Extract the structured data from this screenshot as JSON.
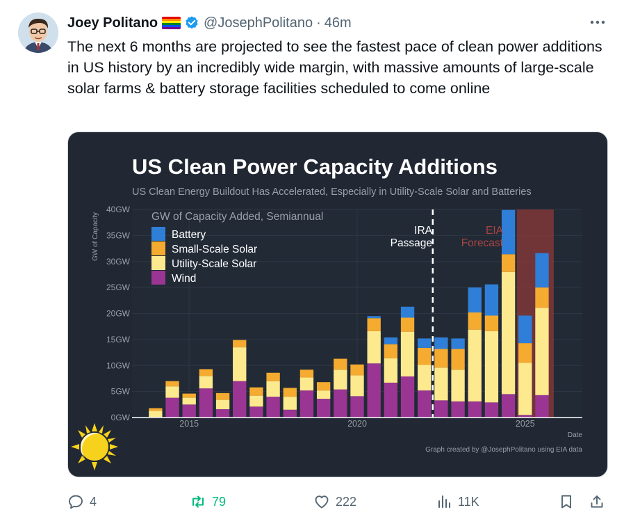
{
  "tweet": {
    "display_name": "Joey Politano",
    "handle": "@JosephPolitano",
    "separator": "·",
    "time": "46m",
    "text": "The next 6 months are projected to see the fastest pace of clean power additions in US history by an incredibly wide margin, with massive amounts of large-scale solar farms & battery storage facilities scheduled to come online",
    "icons": [
      "avatar",
      "rainbow-flag-icon",
      "verified-badge-icon",
      "more-options-icon"
    ]
  },
  "actions": {
    "reply_count": "4",
    "retweet_count": "79",
    "like_count": "222",
    "views_count": "11K",
    "colors": {
      "default": "#536471",
      "retweet": "#00ba7c"
    }
  },
  "chart_data": {
    "type": "bar",
    "stacked": true,
    "title": "US Clean Power Capacity Additions",
    "subtitle": "US Clean Energy Buildout Has Accelerated, Especially in Utility-Scale Solar and Batteries",
    "ylabel": "GW of Capacity",
    "xlabel": "Date",
    "inner_label": "GW of Capacity Added, Semiannual",
    "ylim": [
      0,
      40
    ],
    "y_ticks": [
      "0GW",
      "5GW",
      "10GW",
      "15GW",
      "20GW",
      "25GW",
      "30GW",
      "35GW",
      "40GW"
    ],
    "x_ticks": [
      "2015",
      "2020",
      "2025"
    ],
    "x_tick_values": [
      2015,
      2020,
      2025
    ],
    "xlim": [
      2013.3,
      2026.7
    ],
    "categories": [
      2014.0,
      2014.5,
      2015.0,
      2015.5,
      2016.0,
      2016.5,
      2017.0,
      2017.5,
      2018.0,
      2018.5,
      2019.0,
      2019.5,
      2020.0,
      2020.5,
      2021.0,
      2021.5,
      2022.0,
      2022.5,
      2023.0,
      2023.5,
      2024.0,
      2024.5,
      2025.0,
      2025.5
    ],
    "series": [
      {
        "name": "Wind",
        "color": "#9a3593",
        "values": [
          0.1,
          3.8,
          2.5,
          5.6,
          1.6,
          7.0,
          2.1,
          4.0,
          1.5,
          5.2,
          3.6,
          5.4,
          4.1,
          10.4,
          6.7,
          7.9,
          5.2,
          3.3,
          3.1,
          3.1,
          2.9,
          4.5,
          0.5,
          4.3
        ]
      },
      {
        "name": "Utility-Scale Solar",
        "color": "#fde98e",
        "values": [
          1.2,
          2.2,
          1.3,
          2.4,
          1.8,
          6.5,
          2.1,
          3.0,
          2.5,
          2.5,
          1.6,
          3.8,
          4.0,
          6.2,
          4.7,
          8.6,
          4.9,
          6.3,
          6.1,
          13.8,
          13.7,
          23.5,
          10.0,
          16.8
        ]
      },
      {
        "name": "Small-Scale Solar",
        "color": "#f5ab2f",
        "values": [
          0.5,
          1.0,
          0.8,
          1.3,
          1.3,
          1.4,
          1.6,
          1.6,
          1.7,
          1.5,
          1.6,
          2.1,
          2.1,
          2.5,
          2.7,
          2.7,
          3.3,
          3.6,
          4.0,
          3.3,
          3.0,
          3.4,
          3.8,
          3.9
        ]
      },
      {
        "name": "Battery",
        "color": "#2f7fd8",
        "values": [
          0,
          0,
          0,
          0,
          0,
          0,
          0,
          0,
          0,
          0,
          0,
          0,
          0,
          0.4,
          1.3,
          2.1,
          1.8,
          2.2,
          2.0,
          4.8,
          6.0,
          8.5,
          5.3,
          6.6
        ]
      }
    ],
    "legend": [
      "Battery",
      "Small-Scale Solar",
      "Utility-Scale Solar",
      "Wind"
    ],
    "legend_position": "top-left",
    "annotations": {
      "ira_line_x": 2022.25,
      "ira_line1": "IRA",
      "ira_line2": "Passage",
      "forecast_start": 2024.75,
      "forecast_end": 2025.85,
      "forecast_line1": "EIA",
      "forecast_line2": "Forecast"
    },
    "credit": "Graph created by @JosephPolitano using EIA data",
    "colors": {
      "background": "#212733",
      "text": "#ffffff",
      "muted": "#9aa0a8",
      "forecast": "#8c3a3a"
    }
  }
}
